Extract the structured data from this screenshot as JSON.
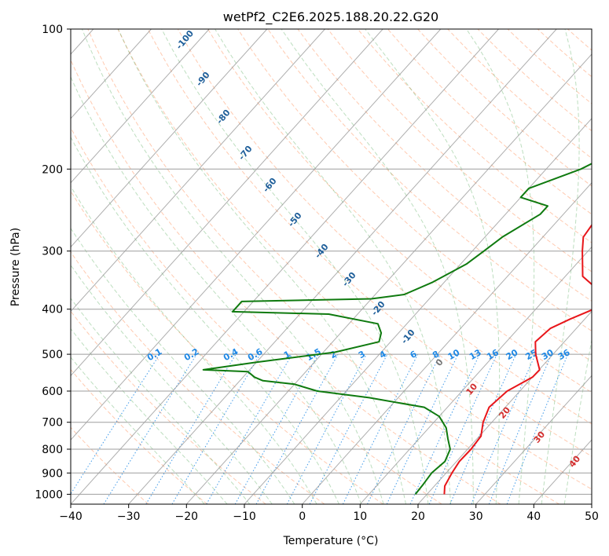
{
  "chart_data": {
    "type": "line",
    "title": "wetPf2_C2E6.2025.188.20.22.G20",
    "xlabel": "Temperature (°C)",
    "ylabel": "Pressure (hPa)",
    "xlim": [
      -40,
      50
    ],
    "ylim": [
      1050,
      100
    ],
    "y_scale": "log",
    "x_ticks": [
      -40,
      -30,
      -20,
      -10,
      0,
      10,
      20,
      30,
      40,
      50
    ],
    "y_ticks": [
      100,
      200,
      300,
      400,
      500,
      600,
      700,
      800,
      900,
      1000
    ],
    "grid": true,
    "skew_t": true,
    "series": [
      {
        "color": "#e8161a",
        "points": [
          [
            23,
            1000
          ],
          [
            21.8,
            960
          ],
          [
            21,
            900
          ],
          [
            20.5,
            850
          ],
          [
            20.6,
            800
          ],
          [
            20.3,
            750
          ],
          [
            18.5,
            700
          ],
          [
            17.2,
            650
          ],
          [
            17.8,
            600
          ],
          [
            20,
            560
          ],
          [
            20.1,
            540
          ],
          [
            17,
            500
          ],
          [
            15,
            470
          ],
          [
            15.5,
            440
          ],
          [
            17.5,
            420
          ],
          [
            20,
            400
          ],
          [
            22,
            385
          ],
          [
            19,
            370
          ],
          [
            13,
            340
          ],
          [
            9,
            300
          ],
          [
            7,
            280
          ],
          [
            6.5,
            260
          ],
          [
            4,
            220
          ],
          [
            0,
            180
          ],
          [
            -4,
            150
          ],
          [
            -5,
            140
          ],
          [
            -5,
            130
          ],
          [
            -3,
            120
          ],
          [
            -2,
            110
          ],
          [
            -2,
            100
          ]
        ]
      },
      {
        "color": "#0f7a0f",
        "points": [
          [
            18,
            1000
          ],
          [
            17.8,
            950
          ],
          [
            17.5,
            900
          ],
          [
            18,
            850
          ],
          [
            17,
            800
          ],
          [
            15,
            760
          ],
          [
            13,
            720
          ],
          [
            10,
            680
          ],
          [
            6,
            650
          ],
          [
            -5,
            620
          ],
          [
            -15,
            600
          ],
          [
            -20,
            580
          ],
          [
            -26,
            570
          ],
          [
            -28,
            560
          ],
          [
            -30,
            545
          ],
          [
            -38,
            540
          ],
          [
            -30,
            520
          ],
          [
            -18,
            495
          ],
          [
            -12,
            470
          ],
          [
            -13,
            450
          ],
          [
            -15,
            430
          ],
          [
            -25,
            410
          ],
          [
            -42,
            405
          ],
          [
            -42,
            385
          ],
          [
            -20,
            380
          ],
          [
            -15,
            372
          ],
          [
            -12,
            350
          ],
          [
            -9,
            320
          ],
          [
            -8,
            300
          ],
          [
            -7,
            280
          ],
          [
            -4,
            250
          ],
          [
            -4,
            240
          ],
          [
            -10,
            230
          ],
          [
            -10,
            220
          ],
          [
            -4,
            200
          ],
          [
            0,
            180
          ],
          [
            0,
            160
          ],
          [
            -1,
            140
          ],
          [
            -5,
            130
          ],
          [
            -5,
            120
          ],
          [
            -4,
            110
          ],
          [
            0,
            100
          ]
        ]
      }
    ],
    "mixing_ratio_labels": [
      "0.1",
      "0.2",
      "0.4",
      "0.6",
      "1",
      "1.5",
      "2",
      "3",
      "4",
      "6",
      "8",
      "10",
      "13",
      "16",
      "20",
      "25",
      "30",
      "36"
    ],
    "dry_adiabat_labels": [
      "-100",
      "-90",
      "-80",
      "-70",
      "-60",
      "-50",
      "-40",
      "-30",
      "-20",
      "-10",
      "0"
    ],
    "moist_adiabat_labels": [
      "10",
      "20",
      "30",
      "40"
    ]
  }
}
